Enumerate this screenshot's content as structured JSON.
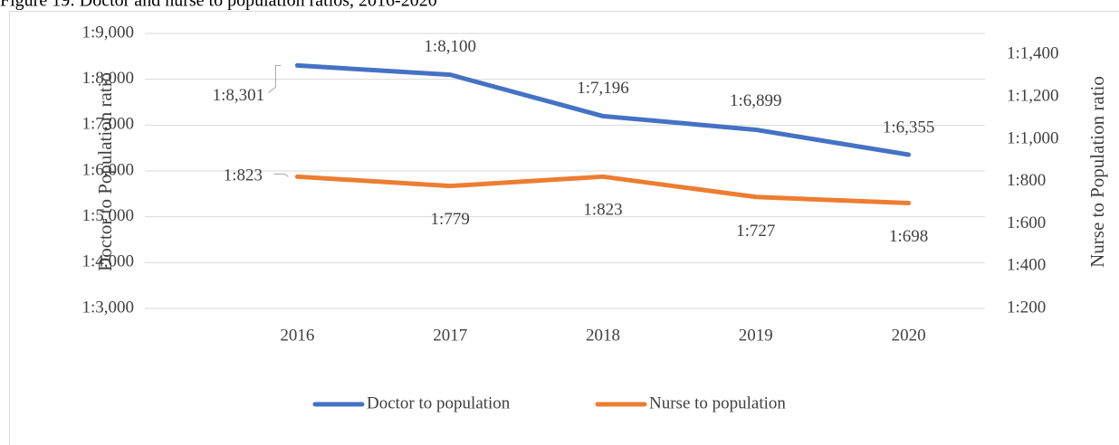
{
  "chart_data": {
    "type": "line",
    "title": "Figure 19: Doctor and nurse to population ratios, 2016-2020",
    "categories": [
      "2016",
      "2017",
      "2018",
      "2019",
      "2020"
    ],
    "y_label": "Doctor to Population ratio",
    "y2_label": "Nurse to Population ratio",
    "ylim": [
      3000,
      9000
    ],
    "yticks": [
      {
        "value": 3000,
        "label": "1:3,000"
      },
      {
        "value": 4000,
        "label": "1:4,000"
      },
      {
        "value": 5000,
        "label": "1:5,000"
      },
      {
        "value": 6000,
        "label": "1:6,000"
      },
      {
        "value": 7000,
        "label": "1:7,000"
      },
      {
        "value": 8000,
        "label": "1:8,000"
      },
      {
        "value": 9000,
        "label": "1:9,000"
      }
    ],
    "y2lim": [
      200,
      1500
    ],
    "y2ticks": [
      {
        "value": 200,
        "label": "1:200"
      },
      {
        "value": 400,
        "label": "1:400"
      },
      {
        "value": 600,
        "label": "1:600"
      },
      {
        "value": 800,
        "label": "1:800"
      },
      {
        "value": 1000,
        "label": "1:1,000"
      },
      {
        "value": 1200,
        "label": "1:1,200"
      },
      {
        "value": 1400,
        "label": "1:1,400"
      }
    ],
    "grid": true,
    "legend": "bottom",
    "series": [
      {
        "name": "Doctor to population",
        "color": "#4472c4",
        "values": [
          8301,
          8100,
          7196,
          6899,
          6355
        ],
        "value_labels": [
          "1:8,301",
          "1:8,100",
          "1:7,196",
          "1:6,899",
          "1:6,355"
        ]
      },
      {
        "name": "Nurse to population",
        "color": "#ed7d31",
        "axis": "y2",
        "values": [
          823,
          779,
          823,
          727,
          698
        ],
        "value_labels": [
          "1:823",
          "1:779",
          "1:823",
          "1:727",
          "1:698"
        ]
      }
    ]
  }
}
